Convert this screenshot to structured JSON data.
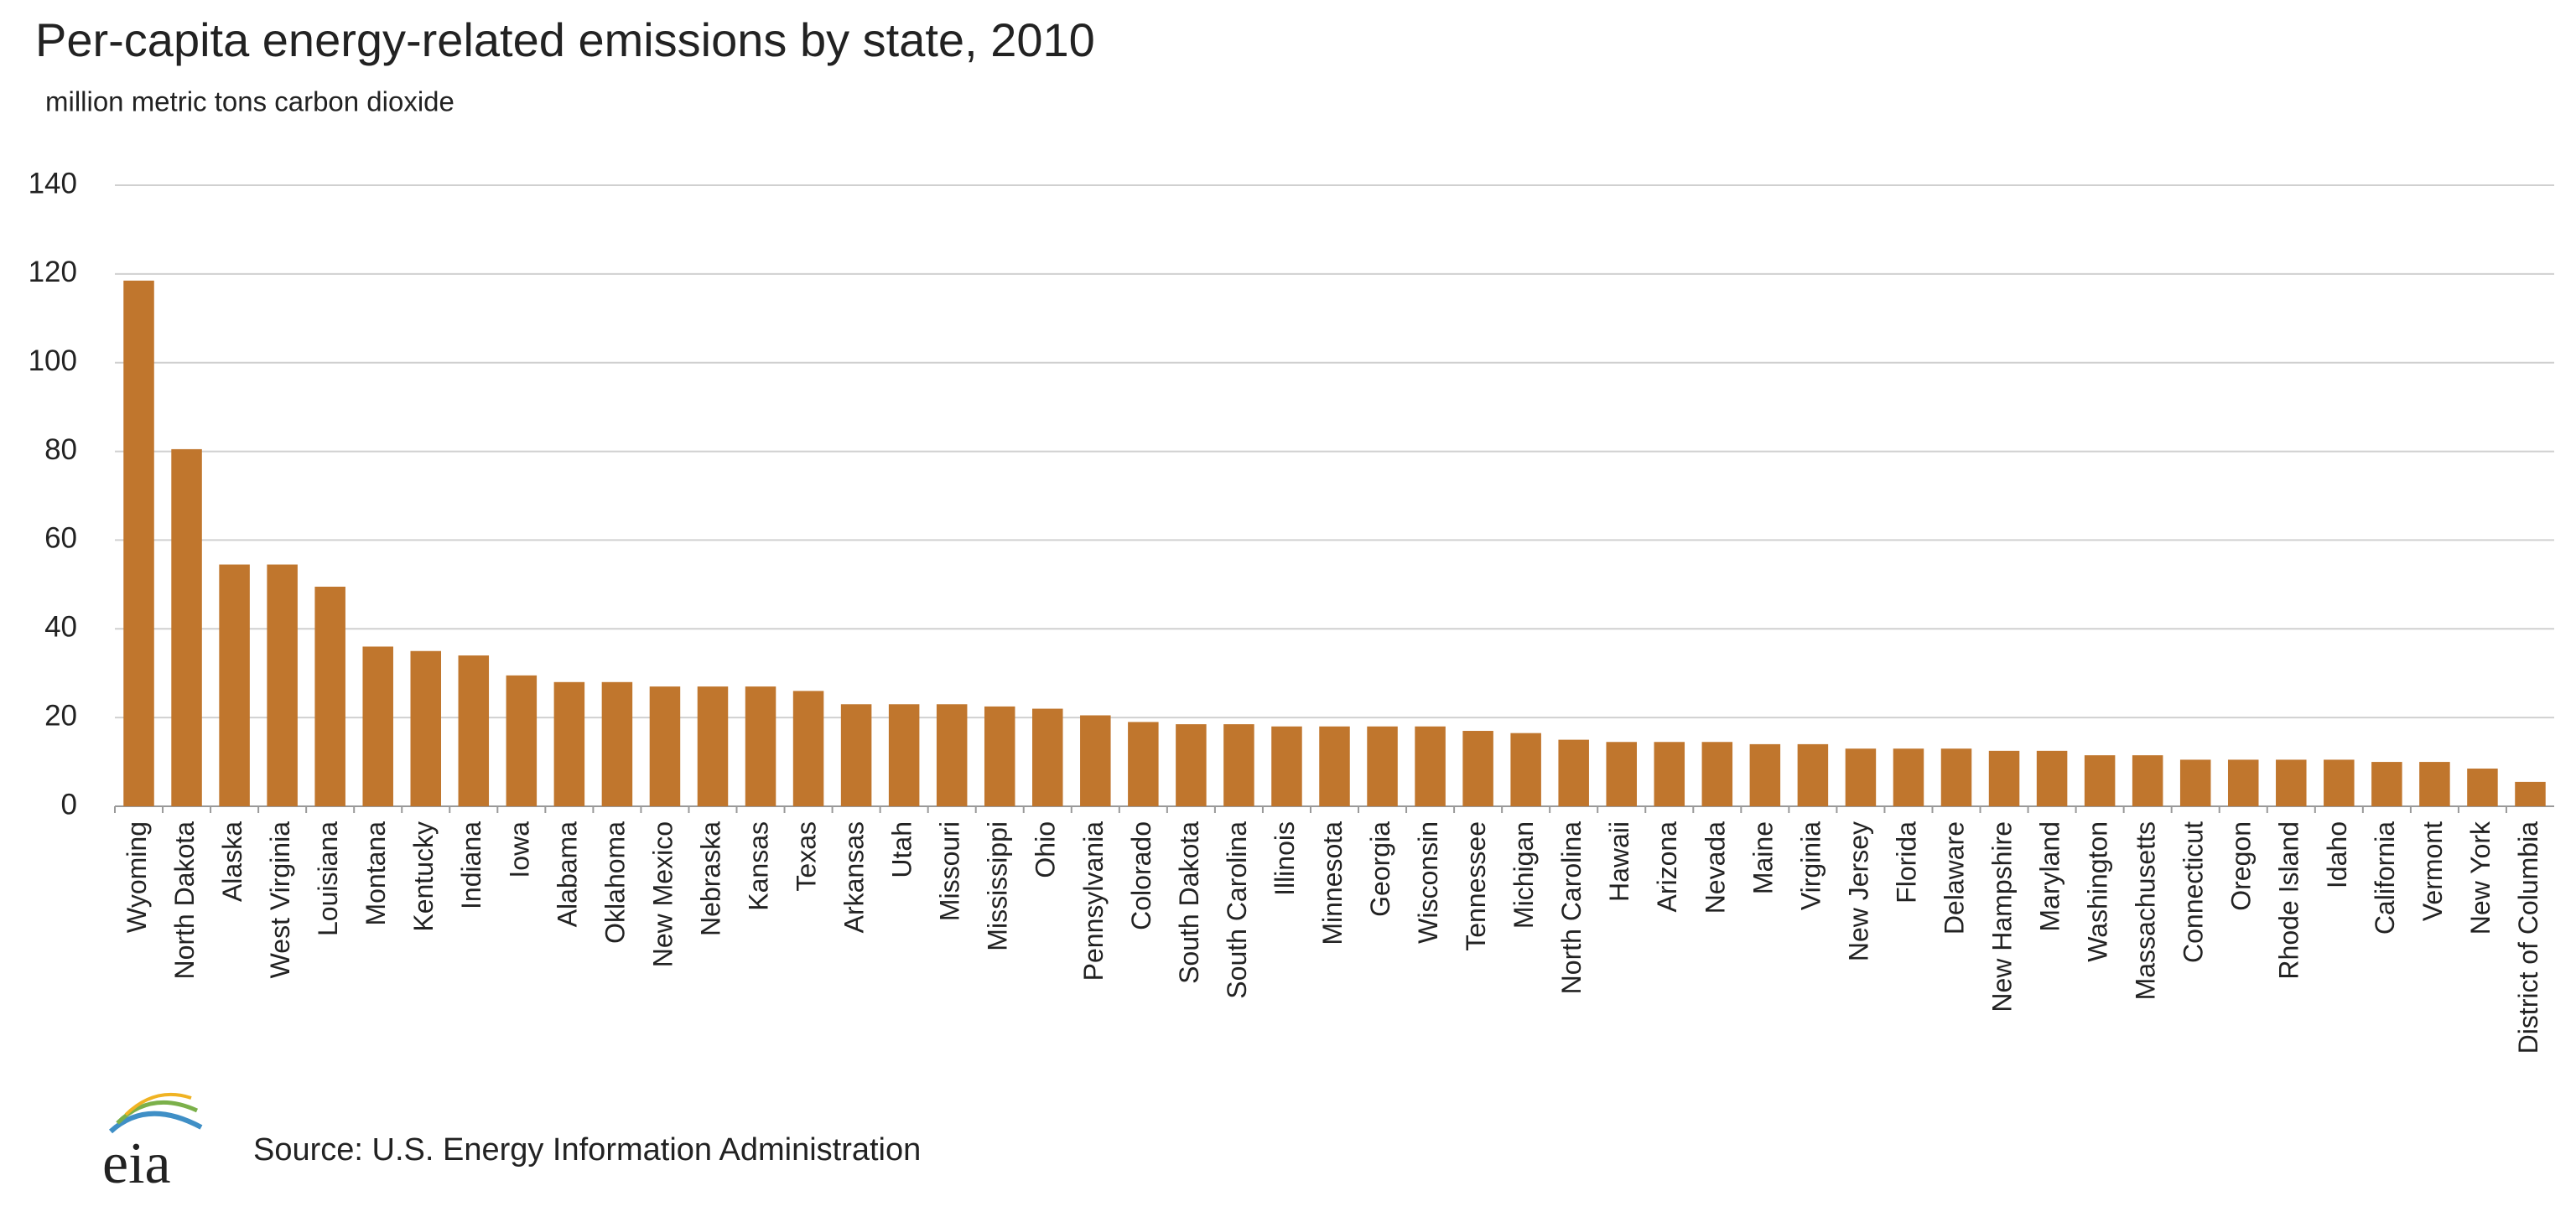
{
  "chart_data": {
    "type": "bar",
    "title": "Per-capita energy-related emissions by state, 2010",
    "subtitle": "million metric tons carbon  dioxide",
    "source": "Source:  U.S. Energy Information  Administration",
    "logo": "eia",
    "categories": [
      "Wyoming",
      "North Dakota",
      "Alaska",
      "West Virginia",
      "Louisiana",
      "Montana",
      "Kentucky",
      "Indiana",
      "Iowa",
      "Alabama",
      "Oklahoma",
      "New Mexico",
      "Nebraska",
      "Kansas",
      "Texas",
      "Arkansas",
      "Utah",
      "Missouri",
      "Mississippi",
      "Ohio",
      "Pennsylvania",
      "Colorado",
      "South Dakota",
      "South Carolina",
      "Illinois",
      "Minnesota",
      "Georgia",
      "Wisconsin",
      "Tennessee",
      "Michigan",
      "North Carolina",
      "Hawaii",
      "Arizona",
      "Nevada",
      "Maine",
      "Virginia",
      "New Jersey",
      "Florida",
      "Delaware",
      "New Hampshire",
      "Maryland",
      "Washington",
      "Massachusetts",
      "Connecticut",
      "Oregon",
      "Rhode Island",
      "Idaho",
      "California",
      "Vermont",
      "New York",
      "District of Columbia"
    ],
    "values": [
      118.5,
      80.5,
      54.5,
      54.5,
      49.5,
      36,
      35,
      34,
      29.5,
      28,
      28,
      27,
      27,
      27,
      26,
      23,
      23,
      23,
      22.5,
      22,
      20.5,
      19,
      18.5,
      18.5,
      18,
      18,
      18,
      18,
      17,
      16.5,
      15,
      14.5,
      14.5,
      14.5,
      14,
      14,
      13,
      13,
      13,
      12.5,
      12.5,
      11.5,
      11.5,
      10.5,
      10.5,
      10.5,
      10.5,
      10,
      10,
      8.5,
      5.5
    ],
    "color": "#c0762d",
    "ylim": [
      0,
      140
    ],
    "yticks": [
      0,
      20,
      40,
      60,
      80,
      100,
      120,
      140
    ],
    "grid": true
  }
}
